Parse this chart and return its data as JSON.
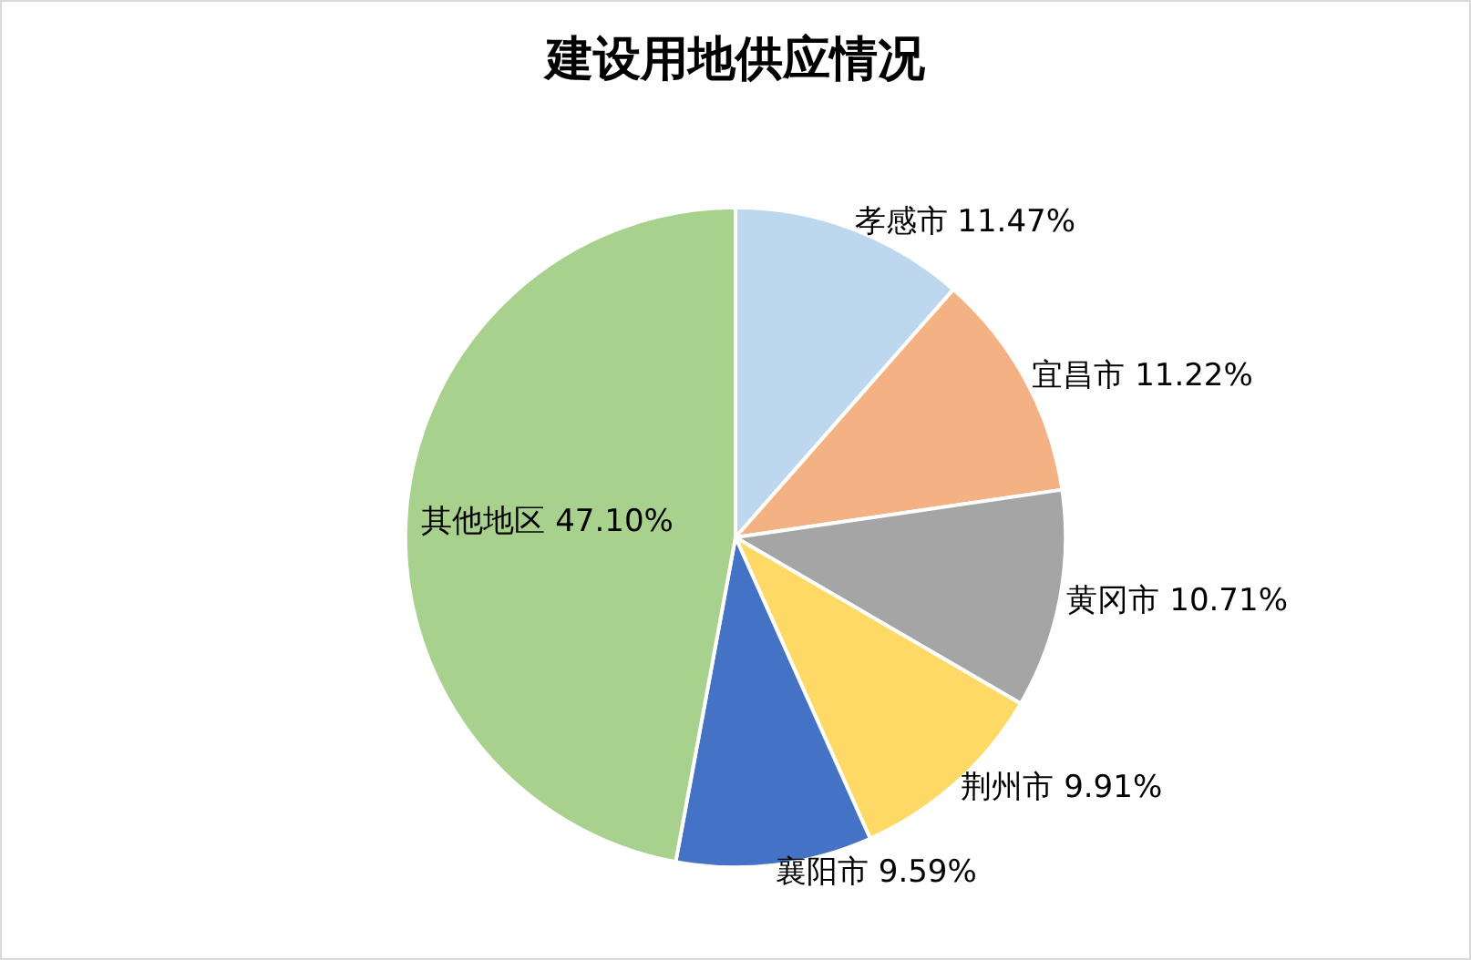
{
  "chart_data": {
    "type": "pie",
    "title": "建设用地供应情况",
    "categories": [
      "孝感市",
      "宜昌市",
      "黄冈市",
      "荆州市",
      "襄阳市",
      "其他地区"
    ],
    "values": [
      11.47,
      11.22,
      10.71,
      9.91,
      9.59,
      47.1
    ],
    "value_labels": [
      "11.47%",
      "11.22%",
      "10.71%",
      "9.91%",
      "9.59%",
      "47.10%"
    ],
    "colors": [
      "#bdd7ee",
      "#f4b183",
      "#a5a5a5",
      "#ffd966",
      "#4472c4",
      "#a9d18e"
    ],
    "legend": false
  }
}
